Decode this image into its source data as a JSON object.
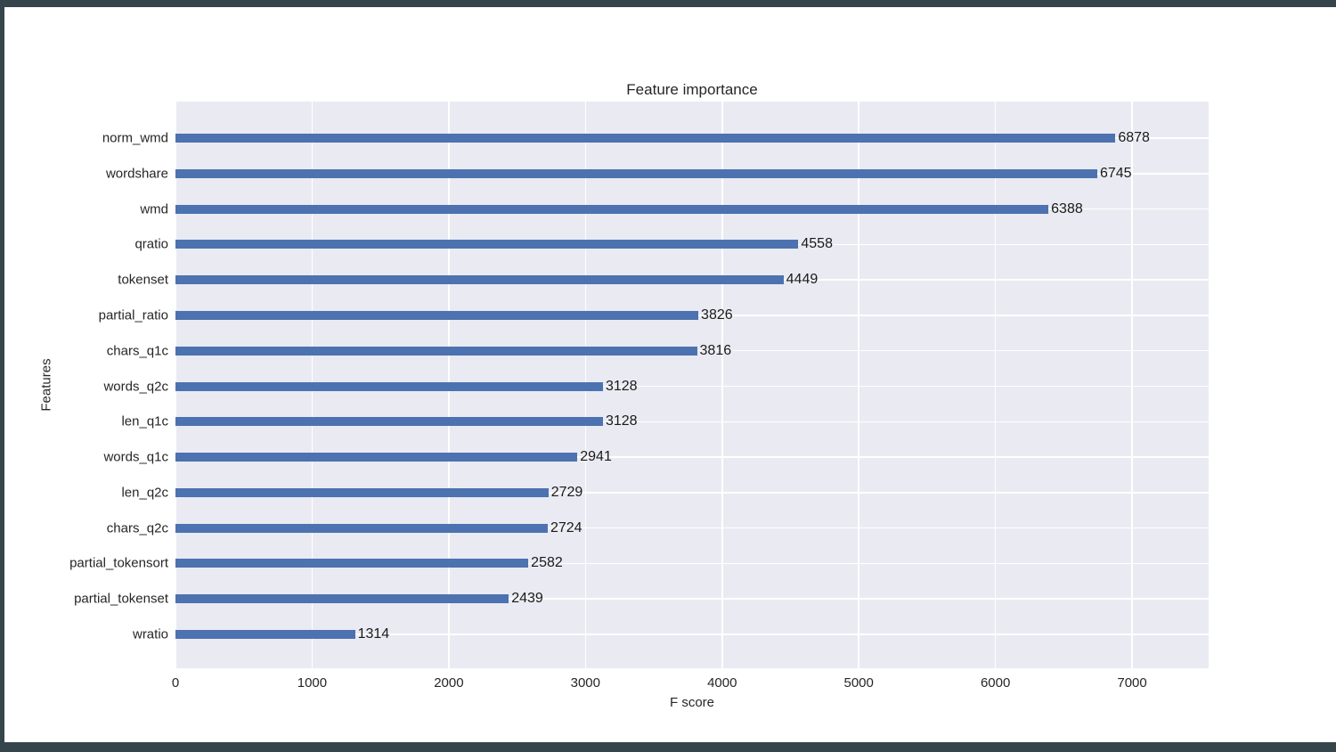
{
  "frame": {
    "border_color": "#36444c",
    "page_bg": "#ffffff"
  },
  "chart_data": {
    "type": "bar",
    "orientation": "horizontal",
    "title": "Feature importance",
    "xlabel": "F score",
    "ylabel": "Features",
    "categories": [
      "norm_wmd",
      "wordshare",
      "wmd",
      "qratio",
      "tokenset",
      "partial_ratio",
      "chars_q1c",
      "words_q2c",
      "len_q1c",
      "words_q1c",
      "len_q2c",
      "chars_q2c",
      "partial_tokensort",
      "partial_tokenset",
      "wratio"
    ],
    "values": [
      6878,
      6745,
      6388,
      4558,
      4449,
      3826,
      3816,
      3128,
      3128,
      2941,
      2729,
      2724,
      2582,
      2439,
      1314
    ],
    "value_labels_shown": true,
    "xlim": [
      0,
      7560
    ],
    "xticks": [
      0,
      1000,
      2000,
      3000,
      4000,
      5000,
      6000,
      7000
    ],
    "grid": true,
    "legend": false,
    "colors": {
      "bar": "#4c72b0",
      "panel_bg": "#eaeaf2",
      "gridline": "#ffffff",
      "text": "#262626",
      "value_label": "#1a1a1a"
    }
  }
}
